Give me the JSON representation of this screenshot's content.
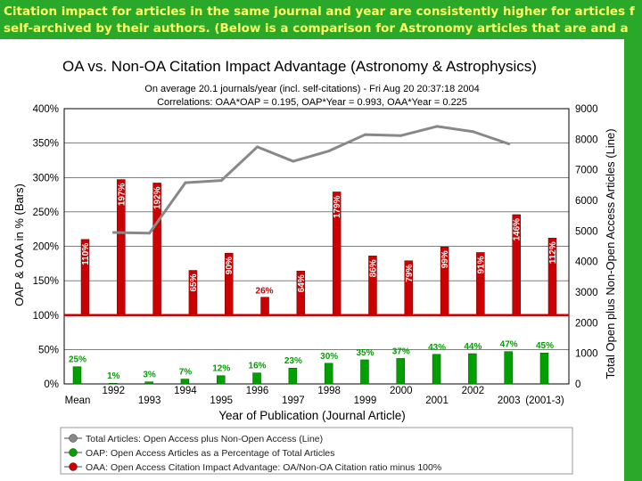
{
  "banner": {
    "line1": "Citation impact for articles in the same journal and year are consistently higher for articles f",
    "line2": "self-archived by their authors. (Below is a comparison for Astronomy articles that are and a"
  },
  "colors": {
    "banner_bg": "#2aa82a",
    "banner_text": "#ffff66",
    "oaa": "#cc0000",
    "oap": "#00a000",
    "total": "#888888"
  },
  "chart_data": {
    "type": "bar",
    "title": "OA vs. Non-OA Citation Impact Advantage (Astronomy & Astrophysics)",
    "subtitle1": "On average 20.1 journals/year (incl. self-citations) - Fri Aug 20 20:37:18 2004",
    "subtitle2": "Correlations:  OAA*OAP = 0.195, OAP*Year = 0.993, OAA*Year = 0.225",
    "xlabel": "Year of Publication (Journal Article)",
    "ylabel_left": "OAP & OAA in % (Bars)",
    "ylabel_right": "Total Open plus Non-Open Access Articles (Line)",
    "categories": [
      "Mean",
      "1992",
      "1993",
      "1994",
      "1995",
      "1996",
      "1997",
      "1998",
      "1999",
      "2000",
      "2001",
      "2002",
      "2003",
      "(2001-3)"
    ],
    "y_left_ticks": [
      "0%",
      "50%",
      "100%",
      "150%",
      "200%",
      "250%",
      "300%",
      "350%",
      "400%"
    ],
    "y_right_ticks": [
      "0",
      "1000",
      "2000",
      "3000",
      "4000",
      "5000",
      "6000",
      "7000",
      "8000",
      "9000"
    ],
    "ylim_left": [
      0,
      400
    ],
    "ylim_right": [
      0,
      9000
    ],
    "series": [
      {
        "name": "OAA: Open Access Citation Impact Advantage: OA/Non-OA Citation ratio minus 100%",
        "values": [
          110,
          197,
          192,
          65,
          90,
          26,
          64,
          179,
          86,
          79,
          99,
          91,
          146,
          112
        ],
        "labels": [
          "110%",
          "197%",
          "192%",
          "65%",
          "90%",
          "26%",
          "64%",
          "179%",
          "86%",
          "79%",
          "99%",
          "91%",
          "146%",
          "112%"
        ]
      },
      {
        "name": "OAP: Open Access Articles as a Percentage of Total Articles",
        "values": [
          25,
          1,
          3,
          7,
          12,
          16,
          23,
          30,
          35,
          37,
          43,
          44,
          47,
          45
        ],
        "labels": [
          "25%",
          "1%",
          "3%",
          "7%",
          "12%",
          "16%",
          "23%",
          "30%",
          "35%",
          "37%",
          "43%",
          "44%",
          "47%",
          "45%"
        ]
      },
      {
        "name": "Total Articles: Open Access plus Non-Open Access (Line)",
        "x": [
          "1992",
          "1993",
          "1994",
          "1995",
          "1996",
          "1997",
          "1998",
          "1999",
          "2000",
          "2001",
          "2002",
          "2003"
        ],
        "values": [
          4950,
          4930,
          6580,
          6650,
          7750,
          7280,
          7620,
          8150,
          8120,
          8420,
          8250,
          7850
        ]
      }
    ],
    "legend": [
      "Total Articles: Open Access plus Non-Open Access (Line)",
      "OAP: Open Access Articles as a Percentage of Total Articles",
      "OAA: Open Access Citation Impact Advantage: OA/Non-OA Citation ratio minus 100%"
    ],
    "grid": true,
    "legend_position": "bottom"
  }
}
